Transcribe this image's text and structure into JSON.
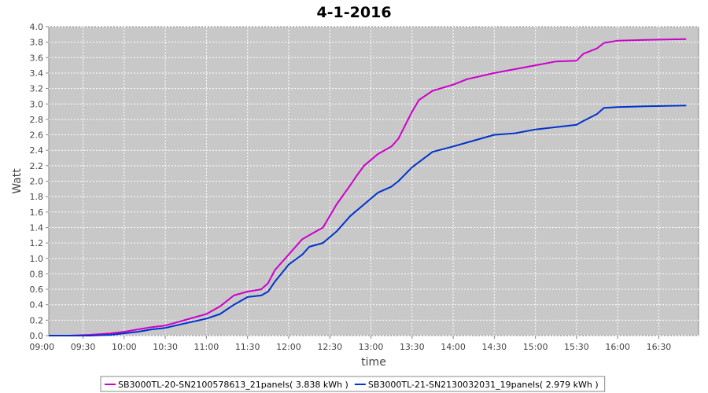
{
  "chart_data": {
    "type": "line",
    "title": "4-1-2016",
    "xlabel": "time",
    "ylabel": "Watt",
    "ylim": [
      0,
      4.0
    ],
    "xlim": [
      "09:05",
      "16:59"
    ],
    "yticks": [
      "0.0",
      "0.2",
      "0.4",
      "0.6",
      "0.8",
      "1.0",
      "1.2",
      "1.4",
      "1.6",
      "1.8",
      "2.0",
      "2.2",
      "2.4",
      "2.6",
      "2.8",
      "3.0",
      "3.2",
      "3.4",
      "3.6",
      "3.8",
      "4.0"
    ],
    "xticks": [
      "09:00",
      "09:30",
      "10:00",
      "10:30",
      "11:00",
      "11:30",
      "12:00",
      "12:30",
      "13:00",
      "13:30",
      "14:00",
      "14:30",
      "15:00",
      "15:30",
      "16:00",
      "16:30"
    ],
    "grid": true,
    "legend_position": "bottom",
    "background": "#c8c8c8",
    "series": [
      {
        "name": "SB3000TL-20-SN2100578613_21panels( 3.838 kWh )",
        "color": "#cc00cc",
        "points": [
          [
            "09:05",
            0.0
          ],
          [
            "09:20",
            0.0
          ],
          [
            "09:35",
            0.01
          ],
          [
            "09:50",
            0.03
          ],
          [
            "10:00",
            0.05
          ],
          [
            "10:10",
            0.08
          ],
          [
            "10:20",
            0.11
          ],
          [
            "10:30",
            0.13
          ],
          [
            "10:40",
            0.18
          ],
          [
            "10:50",
            0.23
          ],
          [
            "11:00",
            0.28
          ],
          [
            "11:10",
            0.38
          ],
          [
            "11:20",
            0.52
          ],
          [
            "11:30",
            0.57
          ],
          [
            "11:40",
            0.6
          ],
          [
            "11:45",
            0.68
          ],
          [
            "11:50",
            0.85
          ],
          [
            "12:00",
            1.05
          ],
          [
            "12:10",
            1.25
          ],
          [
            "12:15",
            1.3
          ],
          [
            "12:25",
            1.4
          ],
          [
            "12:35",
            1.7
          ],
          [
            "12:45",
            1.95
          ],
          [
            "12:50",
            2.08
          ],
          [
            "12:55",
            2.2
          ],
          [
            "13:05",
            2.35
          ],
          [
            "13:15",
            2.45
          ],
          [
            "13:20",
            2.55
          ],
          [
            "13:30",
            2.9
          ],
          [
            "13:35",
            3.05
          ],
          [
            "13:45",
            3.17
          ],
          [
            "14:00",
            3.25
          ],
          [
            "14:10",
            3.32
          ],
          [
            "14:30",
            3.4
          ],
          [
            "14:45",
            3.45
          ],
          [
            "15:00",
            3.5
          ],
          [
            "15:15",
            3.55
          ],
          [
            "15:30",
            3.56
          ],
          [
            "15:35",
            3.65
          ],
          [
            "15:45",
            3.72
          ],
          [
            "15:50",
            3.79
          ],
          [
            "16:00",
            3.82
          ],
          [
            "16:20",
            3.83
          ],
          [
            "16:50",
            3.84
          ]
        ]
      },
      {
        "name": "SB3000TL-21-SN2130032031_19panels( 2.979 kWh )",
        "color": "#0033cc",
        "points": [
          [
            "09:05",
            0.0
          ],
          [
            "09:20",
            0.0
          ],
          [
            "09:35",
            0.0
          ],
          [
            "09:50",
            0.01
          ],
          [
            "10:00",
            0.03
          ],
          [
            "10:10",
            0.05
          ],
          [
            "10:20",
            0.08
          ],
          [
            "10:30",
            0.1
          ],
          [
            "10:40",
            0.14
          ],
          [
            "10:50",
            0.18
          ],
          [
            "11:00",
            0.22
          ],
          [
            "11:10",
            0.28
          ],
          [
            "11:20",
            0.4
          ],
          [
            "11:30",
            0.5
          ],
          [
            "11:40",
            0.52
          ],
          [
            "11:45",
            0.57
          ],
          [
            "11:50",
            0.7
          ],
          [
            "12:00",
            0.92
          ],
          [
            "12:10",
            1.05
          ],
          [
            "12:15",
            1.15
          ],
          [
            "12:25",
            1.2
          ],
          [
            "12:35",
            1.35
          ],
          [
            "12:45",
            1.55
          ],
          [
            "12:55",
            1.7
          ],
          [
            "13:05",
            1.85
          ],
          [
            "13:15",
            1.93
          ],
          [
            "13:20",
            2.0
          ],
          [
            "13:30",
            2.18
          ],
          [
            "13:45",
            2.38
          ],
          [
            "14:00",
            2.45
          ],
          [
            "14:10",
            2.5
          ],
          [
            "14:30",
            2.6
          ],
          [
            "14:45",
            2.62
          ],
          [
            "15:00",
            2.67
          ],
          [
            "15:15",
            2.7
          ],
          [
            "15:30",
            2.73
          ],
          [
            "15:35",
            2.78
          ],
          [
            "15:45",
            2.87
          ],
          [
            "15:50",
            2.95
          ],
          [
            "16:00",
            2.96
          ],
          [
            "16:20",
            2.97
          ],
          [
            "16:50",
            2.98
          ]
        ]
      }
    ]
  }
}
